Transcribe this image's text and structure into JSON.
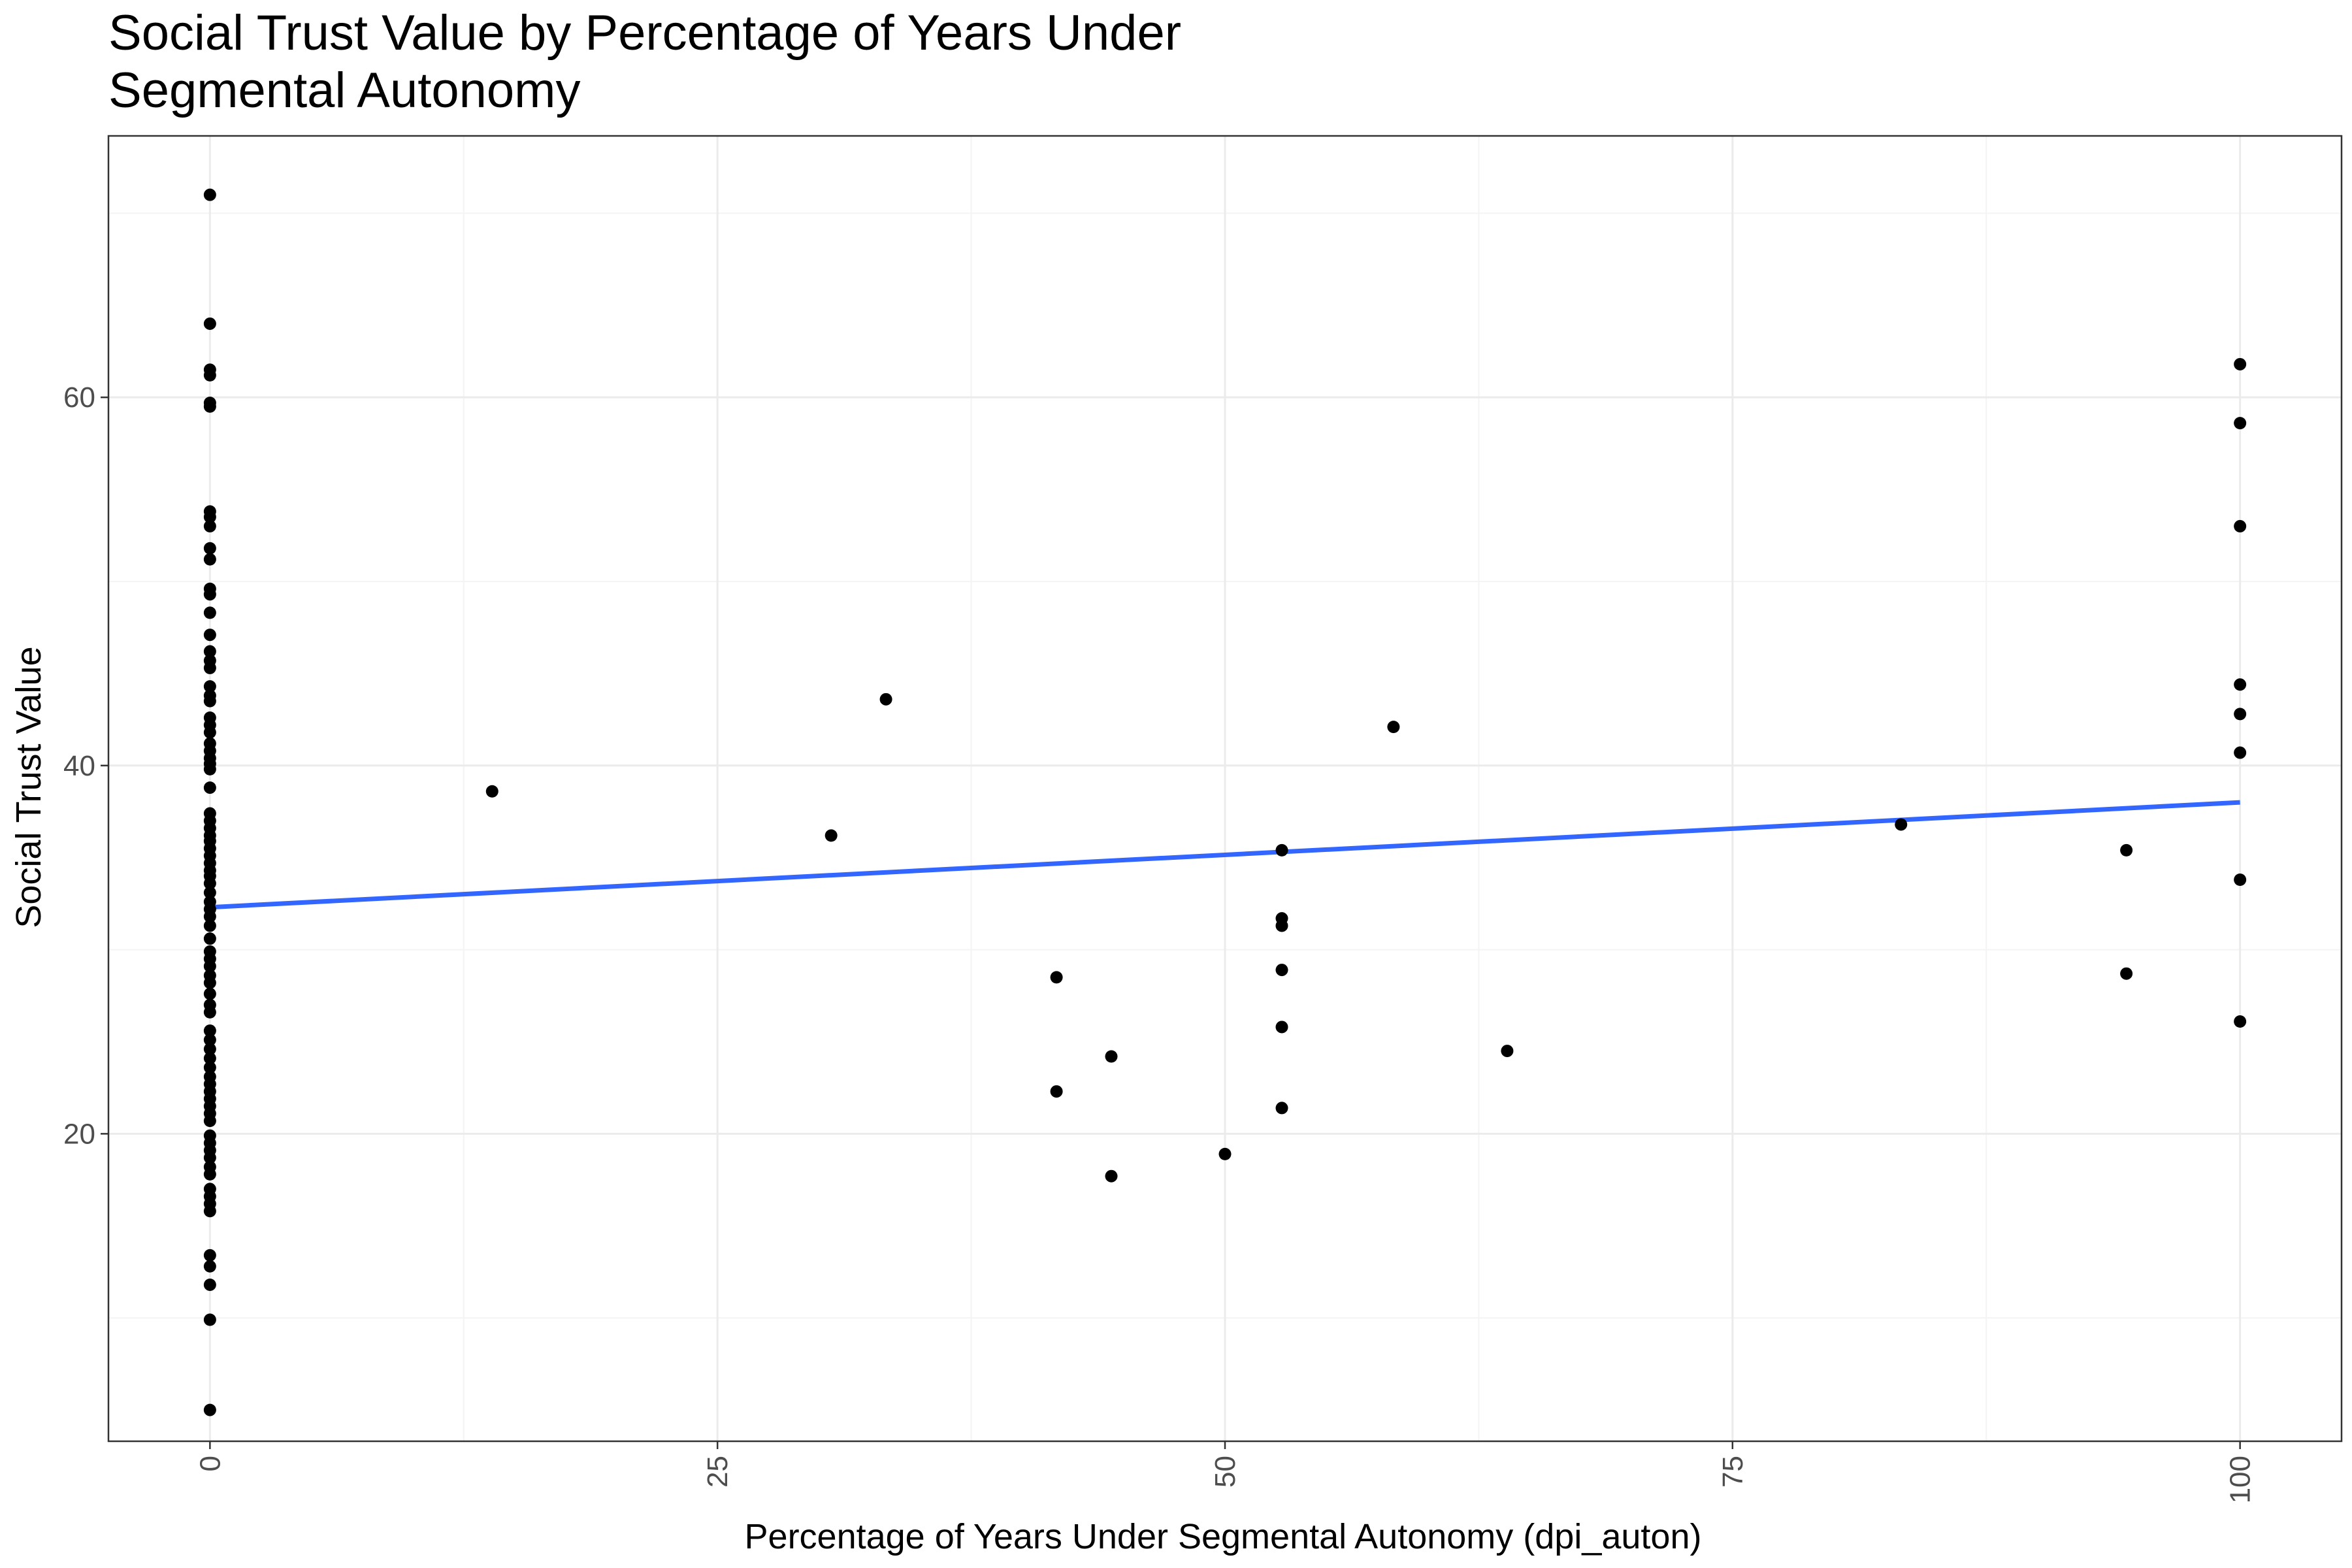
{
  "chart_data": {
    "type": "scatter",
    "title": [
      "Social Trust Value by Percentage of Years Under",
      "Segmental Autonomy"
    ],
    "xlabel": "Percentage of Years Under Segmental Autonomy (dpi_auton)",
    "ylabel": "Social Trust Value",
    "xlim": [
      -5,
      105
    ],
    "ylim": [
      3.3,
      74.2
    ],
    "x_ticks": [
      0,
      25,
      50,
      75,
      100
    ],
    "x_tick_labels": [
      "0",
      "25",
      "50",
      "75",
      "100"
    ],
    "y_ticks": [
      20,
      40,
      60
    ],
    "y_tick_labels": [
      "20",
      "40",
      "60"
    ],
    "x_minor_ticks": [
      12.5,
      37.5,
      62.5,
      87.5
    ],
    "y_minor_ticks": [
      10,
      30,
      50,
      70
    ],
    "grid": true,
    "point_color": "#000000",
    "trend_line": {
      "color": "#3366ff",
      "x": [
        0,
        100
      ],
      "y": [
        32.3,
        38.0
      ]
    },
    "points": [
      [
        0,
        71.0
      ],
      [
        0,
        64.0
      ],
      [
        0,
        61.5
      ],
      [
        0,
        61.2
      ],
      [
        0,
        59.7
      ],
      [
        0,
        59.5
      ],
      [
        0,
        53.8
      ],
      [
        0,
        53.5
      ],
      [
        0,
        53.0
      ],
      [
        0,
        51.8
      ],
      [
        0,
        51.2
      ],
      [
        0,
        49.6
      ],
      [
        0,
        49.3
      ],
      [
        0,
        48.3
      ],
      [
        0,
        47.1
      ],
      [
        0,
        46.2
      ],
      [
        0,
        45.7
      ],
      [
        0,
        45.3
      ],
      [
        0,
        44.3
      ],
      [
        0,
        43.8
      ],
      [
        0,
        43.5
      ],
      [
        0,
        42.6
      ],
      [
        0,
        42.2
      ],
      [
        0,
        41.8
      ],
      [
        0,
        41.2
      ],
      [
        0,
        40.8
      ],
      [
        0,
        40.4
      ],
      [
        0,
        40.1
      ],
      [
        0,
        39.8
      ],
      [
        0,
        38.8
      ],
      [
        0,
        37.4
      ],
      [
        0,
        37.0
      ],
      [
        0,
        36.6
      ],
      [
        0,
        36.2
      ],
      [
        0,
        35.9
      ],
      [
        0,
        35.5
      ],
      [
        0,
        35.1
      ],
      [
        0,
        34.7
      ],
      [
        0,
        34.3
      ],
      [
        0,
        34.0
      ],
      [
        0,
        33.6
      ],
      [
        0,
        33.1
      ],
      [
        0,
        32.6
      ],
      [
        0,
        32.2
      ],
      [
        0,
        31.8
      ],
      [
        0,
        31.3
      ],
      [
        0,
        30.6
      ],
      [
        0,
        29.9
      ],
      [
        0,
        29.5
      ],
      [
        0,
        29.1
      ],
      [
        0,
        28.6
      ],
      [
        0,
        28.2
      ],
      [
        0,
        27.6
      ],
      [
        0,
        27.0
      ],
      [
        0,
        26.6
      ],
      [
        0,
        25.6
      ],
      [
        0,
        25.1
      ],
      [
        0,
        24.6
      ],
      [
        0,
        24.1
      ],
      [
        0,
        23.6
      ],
      [
        0,
        23.1
      ],
      [
        0,
        22.7
      ],
      [
        0,
        22.3
      ],
      [
        0,
        21.9
      ],
      [
        0,
        21.5
      ],
      [
        0,
        21.1
      ],
      [
        0,
        20.7
      ],
      [
        0,
        19.9
      ],
      [
        0,
        19.5
      ],
      [
        0,
        19.1
      ],
      [
        0,
        18.7
      ],
      [
        0,
        18.2
      ],
      [
        0,
        17.8
      ],
      [
        0,
        17.0
      ],
      [
        0,
        16.6
      ],
      [
        0,
        16.2
      ],
      [
        0,
        15.8
      ],
      [
        0,
        13.4
      ],
      [
        0,
        12.8
      ],
      [
        0,
        11.8
      ],
      [
        0,
        9.9
      ],
      [
        0,
        5.0
      ],
      [
        13.9,
        38.6
      ],
      [
        30.6,
        36.2
      ],
      [
        33.3,
        43.6
      ],
      [
        41.7,
        28.5
      ],
      [
        41.7,
        22.3
      ],
      [
        44.4,
        24.2
      ],
      [
        44.4,
        17.7
      ],
      [
        50.0,
        18.9
      ],
      [
        52.8,
        35.4
      ],
      [
        52.8,
        31.7
      ],
      [
        52.8,
        31.3
      ],
      [
        52.8,
        28.9
      ],
      [
        52.8,
        25.8
      ],
      [
        52.8,
        21.4
      ],
      [
        58.3,
        42.1
      ],
      [
        63.9,
        24.5
      ],
      [
        83.3,
        36.8
      ],
      [
        94.4,
        35.4
      ],
      [
        94.4,
        28.7
      ],
      [
        100,
        61.8
      ],
      [
        100,
        58.6
      ],
      [
        100,
        53.0
      ],
      [
        100,
        44.4
      ],
      [
        100,
        42.8
      ],
      [
        100,
        40.7
      ],
      [
        100,
        33.8
      ],
      [
        100,
        26.1
      ]
    ]
  }
}
